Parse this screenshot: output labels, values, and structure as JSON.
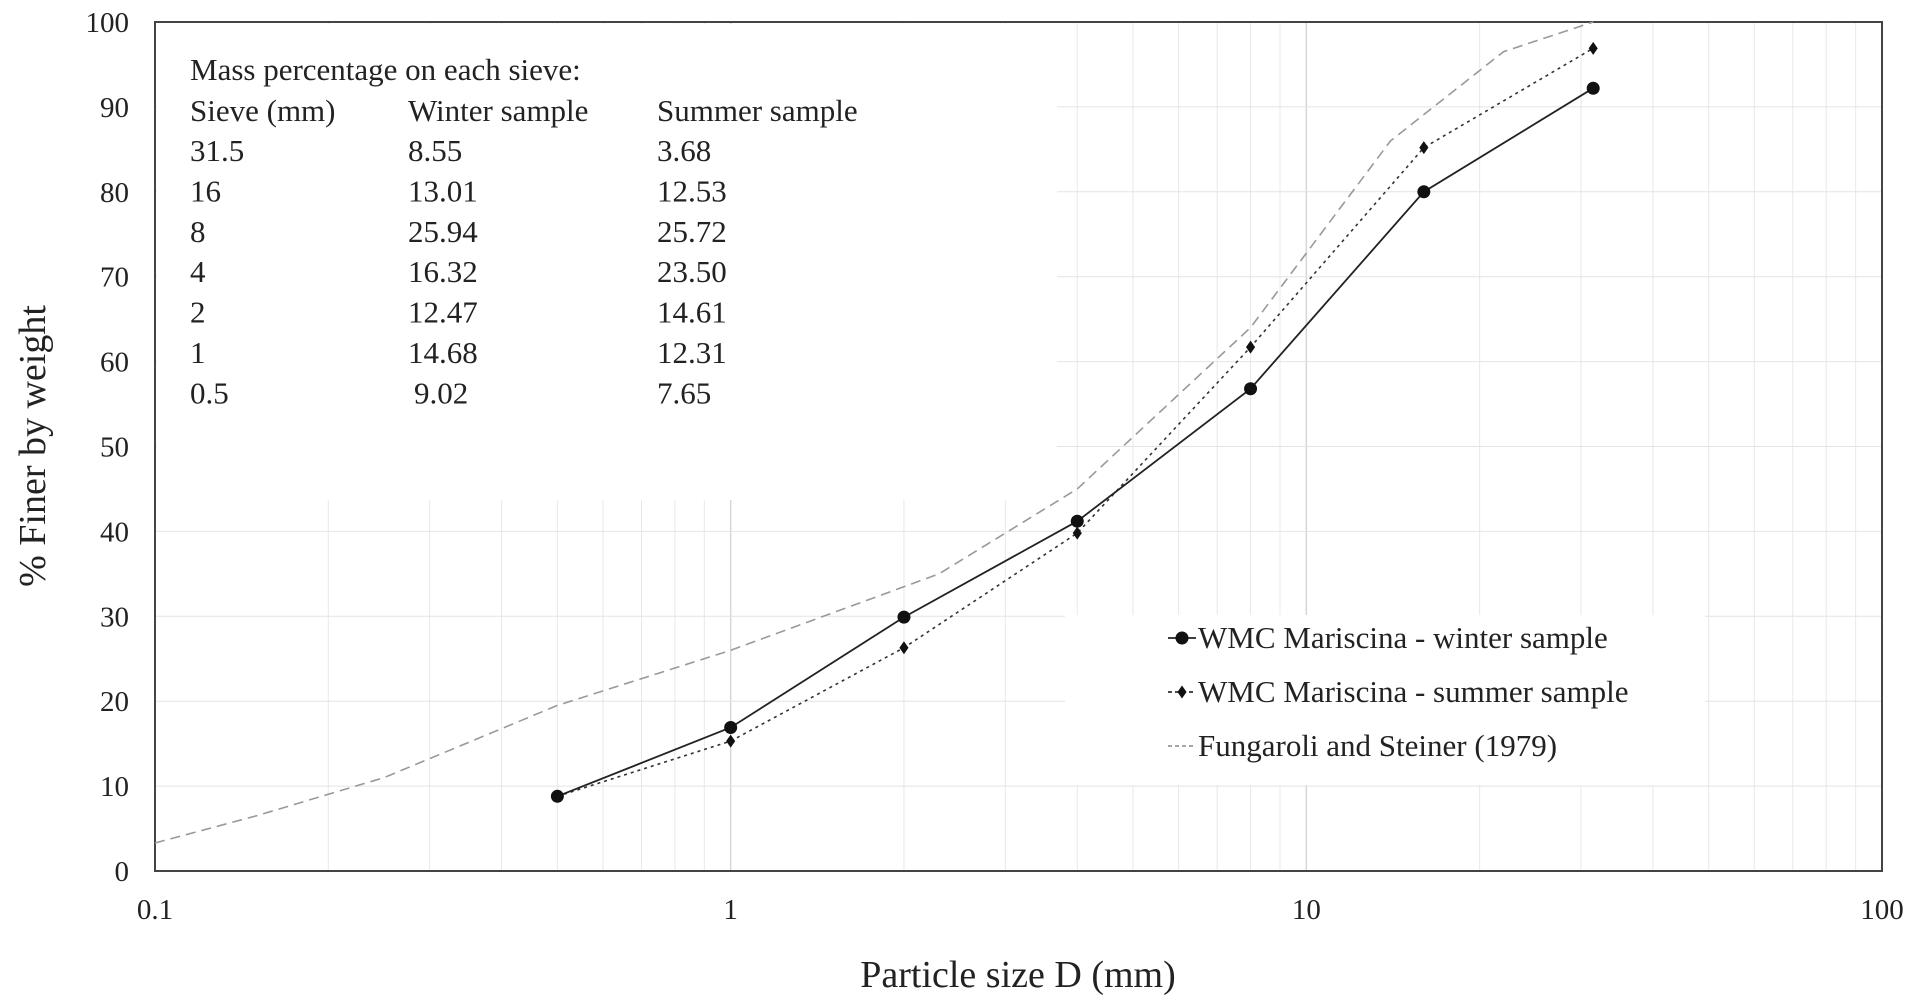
{
  "chart_data": {
    "type": "line",
    "title": "",
    "xlabel": "Particle size D (mm)",
    "ylabel": "% Finer by weight",
    "xscale": "log",
    "xlim": [
      0.1,
      100
    ],
    "ylim": [
      0,
      100
    ],
    "xticks": [
      0.1,
      1,
      10,
      100
    ],
    "xtick_labels": [
      "0.1",
      "1",
      "10",
      "100"
    ],
    "yticks": [
      0,
      10,
      20,
      30,
      40,
      50,
      60,
      70,
      80,
      90,
      100
    ],
    "ytick_labels": [
      "0",
      "10",
      "20",
      "30",
      "40",
      "50",
      "60",
      "70",
      "80",
      "90",
      "100"
    ],
    "grid": true,
    "legend_position": "bottom-right",
    "series": [
      {
        "name": "WMC Mariscina - winter sample",
        "marker": "circle",
        "line": "solid",
        "color": "#222222",
        "x": [
          0.5,
          1,
          2,
          4,
          8,
          16,
          31.5
        ],
        "y": [
          8.8,
          16.9,
          29.9,
          41.2,
          56.8,
          80.0,
          92.2
        ]
      },
      {
        "name": "WMC Mariscina - summer sample",
        "marker": "diamond",
        "line": "dotted",
        "color": "#333333",
        "x": [
          0.5,
          1,
          2,
          4,
          8,
          16,
          31.5
        ],
        "y": [
          8.8,
          15.3,
          26.3,
          39.8,
          61.7,
          85.2,
          96.9
        ]
      },
      {
        "name": "Fungaroli and Steiner (1979)",
        "marker": "none",
        "line": "dashed",
        "color": "#999999",
        "x": [
          0.1,
          0.15,
          0.25,
          0.5,
          1,
          2.3,
          4,
          8,
          14,
          22,
          31.5
        ],
        "y": [
          3.3,
          6.5,
          11.0,
          19.5,
          26.0,
          35.0,
          45.0,
          64.0,
          86.0,
          96.5,
          100.0
        ]
      }
    ],
    "annotation_table": {
      "title": "Mass percentage on each sieve:",
      "headers": [
        "Sieve  (mm)",
        "Winter sample",
        "Summer sample"
      ],
      "rows": [
        [
          "31.5",
          "8.55",
          "3.68"
        ],
        [
          "16",
          "13.01",
          "12.53"
        ],
        [
          "8",
          "25.94",
          "25.72"
        ],
        [
          "4",
          "16.32",
          "23.50"
        ],
        [
          "2",
          "12.47",
          "14.61"
        ],
        [
          "1",
          "14.68",
          "12.31"
        ],
        [
          "0.5",
          "9.02",
          "7.65"
        ]
      ]
    }
  }
}
